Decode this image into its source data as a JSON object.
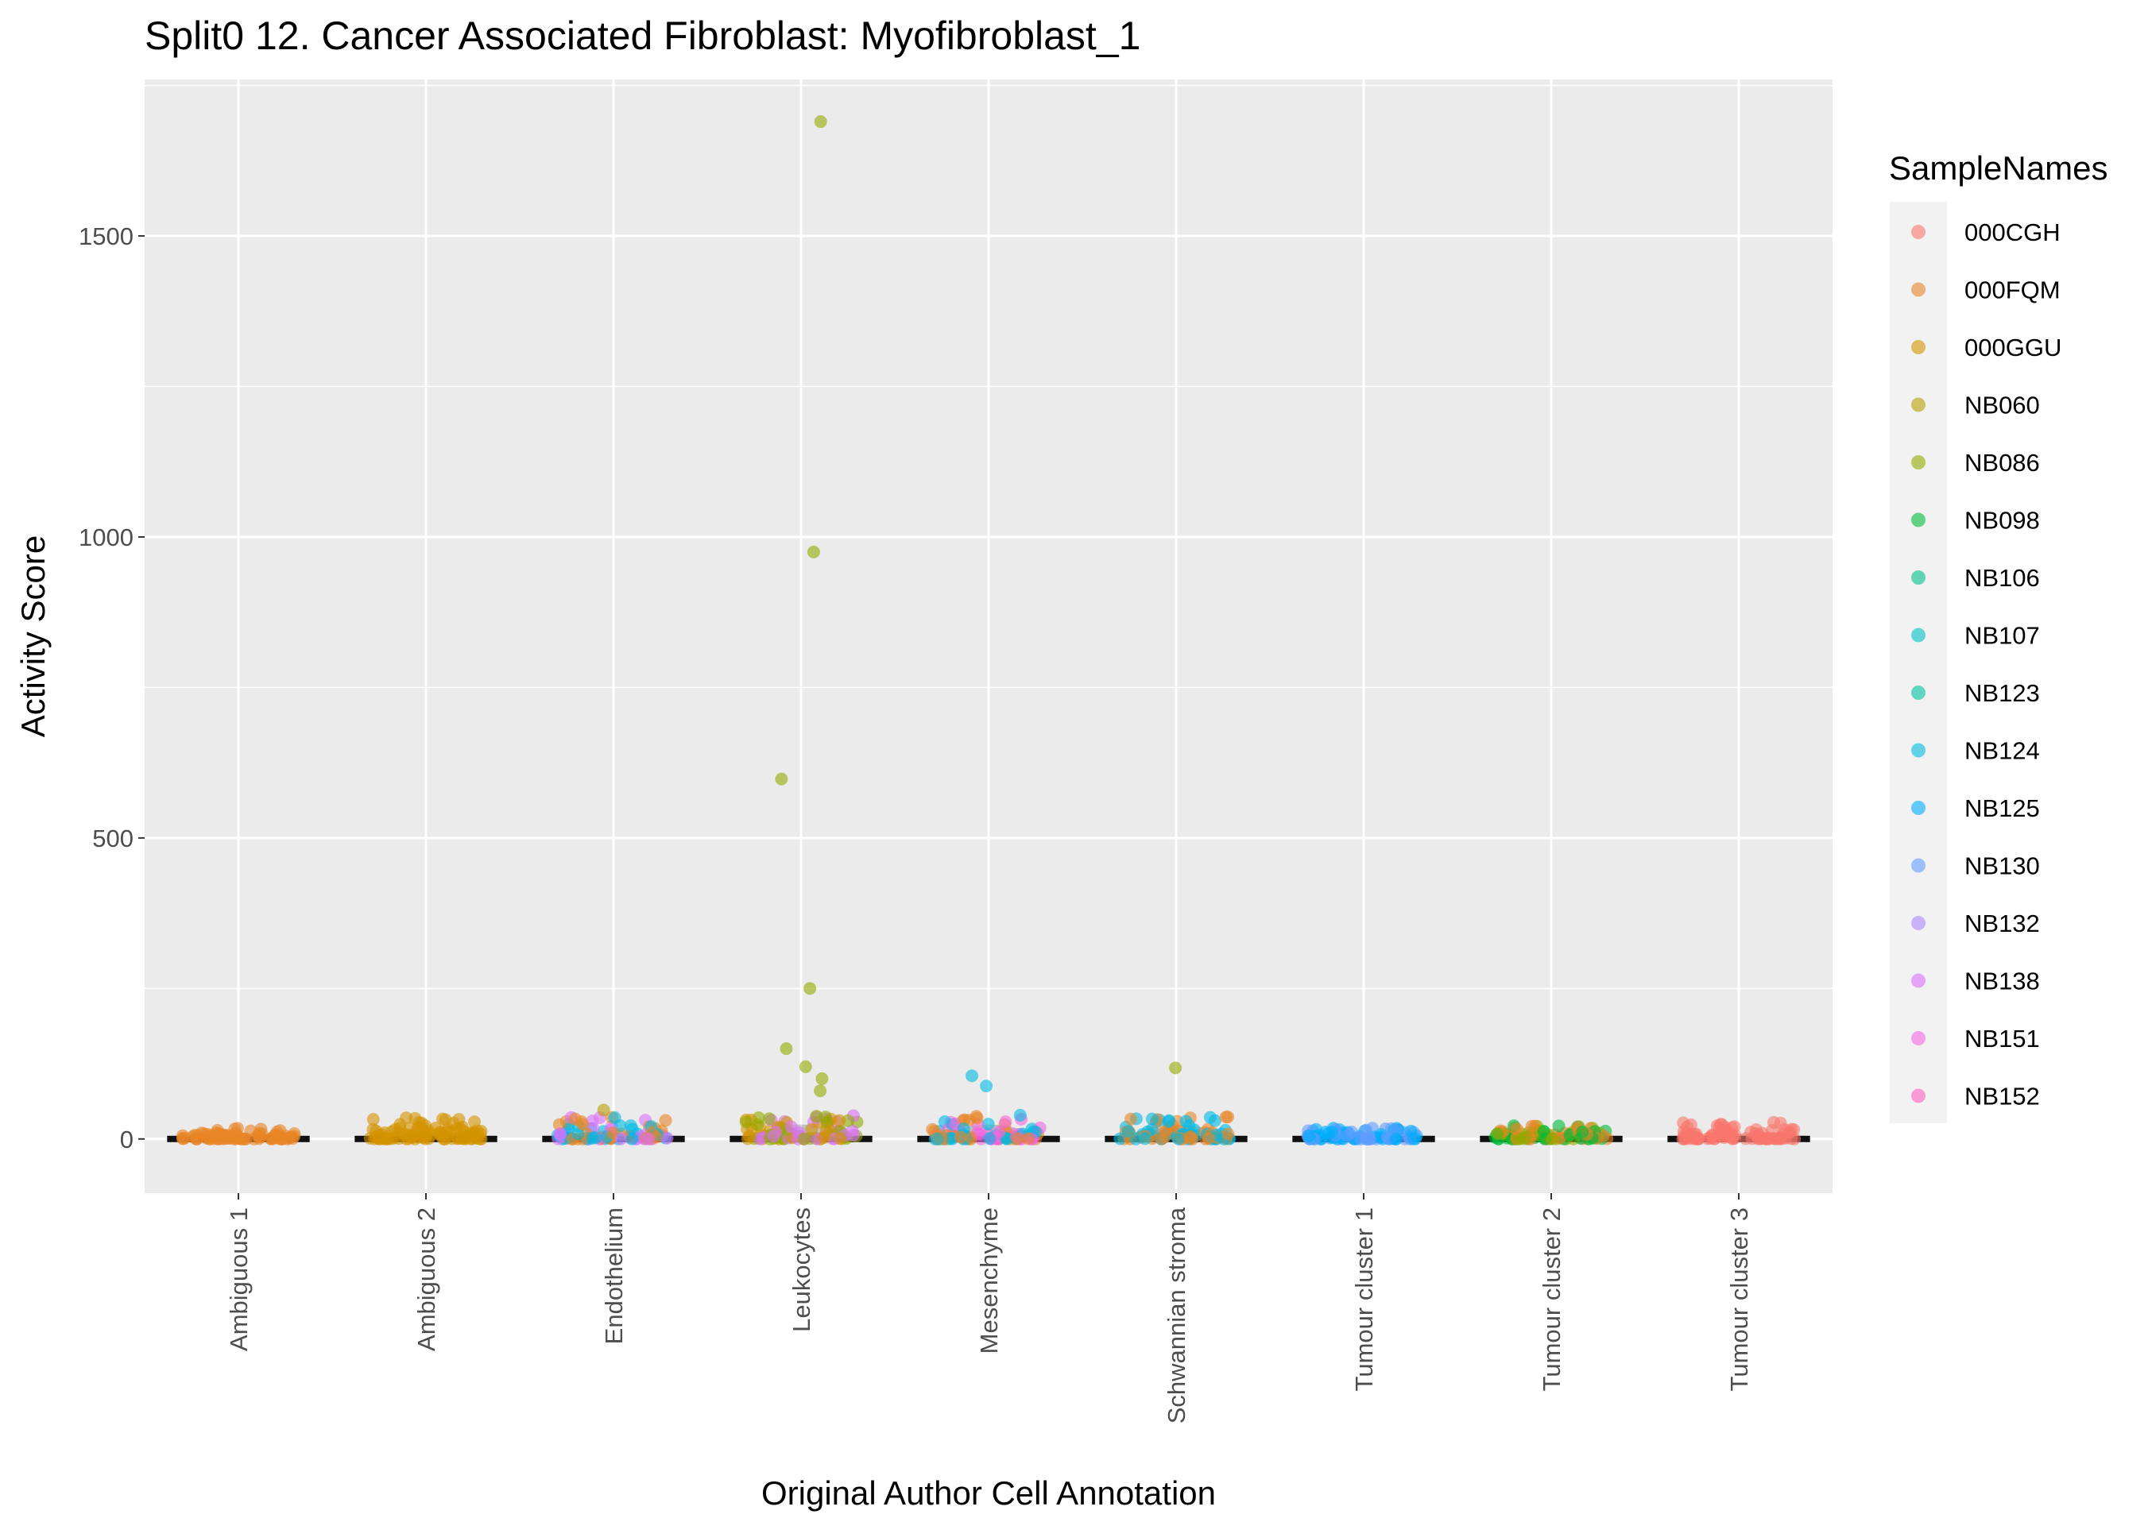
{
  "chart_data": {
    "type": "scatter",
    "subtype": "jitter-strip with violin",
    "title": "Split0 12. Cancer Associated Fibroblast: Myofibroblast_1",
    "xlabel": "Original Author Cell Annotation",
    "ylabel": "Activity Score",
    "ylim": [
      -90,
      1760
    ],
    "yticks": [
      0,
      500,
      1000,
      1500
    ],
    "grid": true,
    "legend_position": "right",
    "categories": [
      "Ambiguous 1",
      "Ambiguous 2",
      "Endothelium",
      "Leukocytes",
      "Mesenchyme",
      "Schwannian stroma",
      "Tumour cluster 1",
      "Tumour cluster 2",
      "Tumour cluster 3"
    ],
    "legend": {
      "title": "SampleNames",
      "entries": [
        {
          "name": "000CGH",
          "color": "#F8766D"
        },
        {
          "name": "000FQM",
          "color": "#E88526"
        },
        {
          "name": "000GGU",
          "color": "#D39200"
        },
        {
          "name": "NB060",
          "color": "#B79F00"
        },
        {
          "name": "NB086",
          "color": "#93AA00"
        },
        {
          "name": "NB098",
          "color": "#00BA38"
        },
        {
          "name": "NB106",
          "color": "#00C08B"
        },
        {
          "name": "NB107",
          "color": "#00BFC4"
        },
        {
          "name": "NB123",
          "color": "#00C1A3"
        },
        {
          "name": "NB124",
          "color": "#00B9E3"
        },
        {
          "name": "NB125",
          "color": "#00ADFA"
        },
        {
          "name": "NB130",
          "color": "#619CFF"
        },
        {
          "name": "NB132",
          "color": "#AE87FF"
        },
        {
          "name": "NB138",
          "color": "#DB72FB"
        },
        {
          "name": "NB151",
          "color": "#F564E3"
        },
        {
          "name": "NB152",
          "color": "#FF61C3"
        }
      ]
    },
    "outliers": [
      {
        "category": "Leukocytes",
        "sample": "NB086",
        "y": 1690
      },
      {
        "category": "Leukocytes",
        "sample": "NB086",
        "y": 975
      },
      {
        "category": "Leukocytes",
        "sample": "NB086",
        "y": 598
      },
      {
        "category": "Leukocytes",
        "sample": "NB086",
        "y": 250
      },
      {
        "category": "Leukocytes",
        "sample": "NB086",
        "y": 150
      },
      {
        "category": "Leukocytes",
        "sample": "NB086",
        "y": 120
      },
      {
        "category": "Leukocytes",
        "sample": "NB086",
        "y": 100
      },
      {
        "category": "Leukocytes",
        "sample": "NB086",
        "y": 80
      },
      {
        "category": "Schwannian stroma",
        "sample": "NB086",
        "y": 118
      },
      {
        "category": "Mesenchyme",
        "sample": "NB124",
        "y": 105
      },
      {
        "category": "Mesenchyme",
        "sample": "NB124",
        "y": 88
      },
      {
        "category": "Endothelium",
        "sample": "NB060",
        "y": 48
      },
      {
        "category": "Ambiguous 2",
        "sample": "000GGU",
        "y": 35
      }
    ],
    "clusters": [
      {
        "category": "Ambiguous 1",
        "main_samples": [
          "000FQM"
        ],
        "max_y": 18
      },
      {
        "category": "Ambiguous 2",
        "main_samples": [
          "000GGU"
        ],
        "max_y": 35
      },
      {
        "category": "Endothelium",
        "main_samples": [
          "000FQM",
          "NB138",
          "NB124"
        ],
        "max_y": 48
      },
      {
        "category": "Leukocytes",
        "main_samples": [
          "000GGU",
          "NB086",
          "NB138"
        ],
        "max_y": 1690
      },
      {
        "category": "Mesenchyme",
        "main_samples": [
          "NB151",
          "000FQM",
          "NB124"
        ],
        "max_y": 105
      },
      {
        "category": "Schwannian stroma",
        "main_samples": [
          "000FQM",
          "NB124"
        ],
        "max_y": 118
      },
      {
        "category": "Tumour cluster 1",
        "main_samples": [
          "NB125",
          "NB130"
        ],
        "max_y": 20
      },
      {
        "category": "Tumour cluster 2",
        "main_samples": [
          "NB098",
          "NB086",
          "000FQM"
        ],
        "max_y": 22
      },
      {
        "category": "Tumour cluster 3",
        "main_samples": [
          "000CGH"
        ],
        "max_y": 28
      }
    ]
  }
}
